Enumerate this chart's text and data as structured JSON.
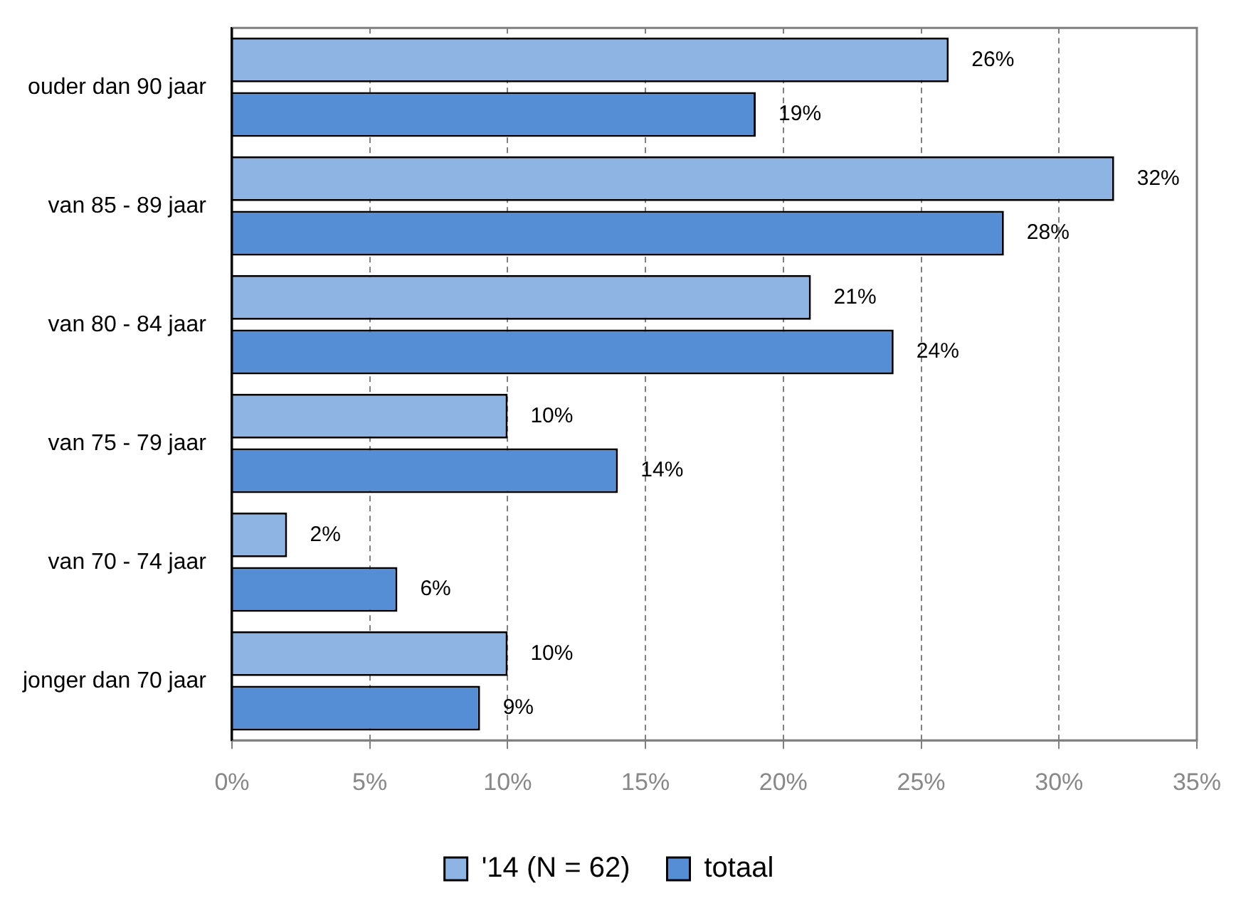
{
  "chart_data": {
    "type": "bar",
    "orientation": "horizontal",
    "categories": [
      "ouder dan 90 jaar",
      "van 85 - 89 jaar",
      "van 80 - 84 jaar",
      "van 75 - 79 jaar",
      "van 70 - 74 jaar",
      "jonger dan 70 jaar"
    ],
    "series": [
      {
        "name": "'14 (N = 62)",
        "color": "#8eb4e3",
        "values": [
          26,
          32,
          21,
          10,
          2,
          10
        ],
        "value_labels": [
          "26%",
          "32%",
          "21%",
          "10%",
          "2%",
          "10%"
        ]
      },
      {
        "name": "totaal",
        "color": "#558ed5",
        "values": [
          19,
          28,
          24,
          14,
          6,
          9
        ],
        "value_labels": [
          "19%",
          "28%",
          "24%",
          "14%",
          "6%",
          "9%"
        ]
      }
    ],
    "xlim": [
      0,
      35
    ],
    "xticks": [
      {
        "value": 0,
        "label": "0%"
      },
      {
        "value": 5,
        "label": "5%"
      },
      {
        "value": 10,
        "label": "10%"
      },
      {
        "value": 15,
        "label": "15%"
      },
      {
        "value": 20,
        "label": "20%"
      },
      {
        "value": 25,
        "label": "25%"
      },
      {
        "value": 30,
        "label": "30%"
      },
      {
        "value": 35,
        "label": "35%"
      }
    ],
    "grid": "x",
    "legend": "bottom"
  }
}
